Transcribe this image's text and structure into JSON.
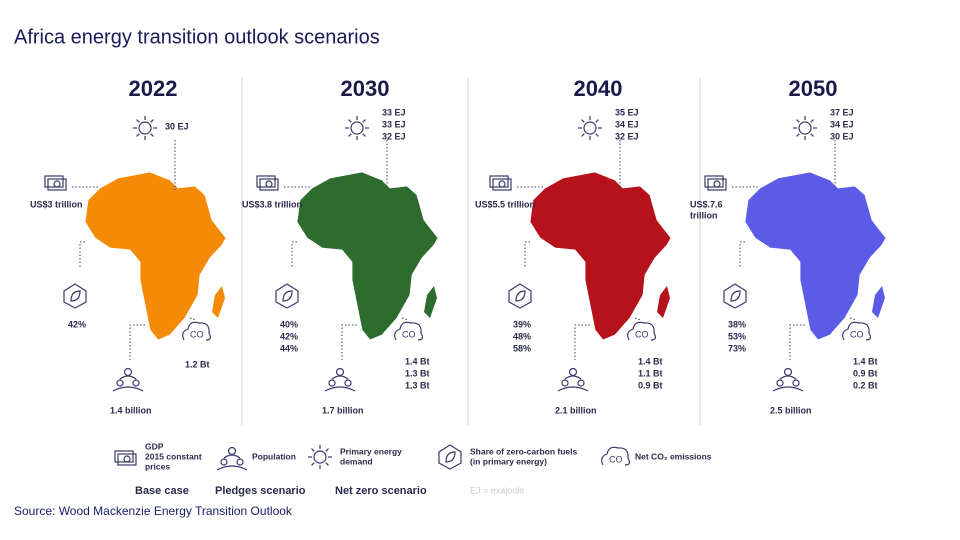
{
  "title": "Africa energy transition outlook scenarios",
  "panels": [
    {
      "year": "2022",
      "color": "#f58a07",
      "energy": [
        "30 EJ"
      ],
      "gdp": [
        "US$3 trillion"
      ],
      "zero_carbon": [
        "42%"
      ],
      "emissions": [
        "1.2 Bt"
      ],
      "population": "1.4 billion"
    },
    {
      "year": "2030",
      "color": "#2e6b2f",
      "energy": [
        "33 EJ",
        "33 EJ",
        "32 EJ"
      ],
      "gdp": [
        "US$3.8 trillion"
      ],
      "zero_carbon": [
        "40%",
        "42%",
        "44%"
      ],
      "emissions": [
        "1.4 Bt",
        "1.3 Bt",
        "1.3 Bt"
      ],
      "population": "1.7 billion"
    },
    {
      "year": "2040",
      "color": "#b5121b",
      "energy": [
        "35 EJ",
        "34 EJ",
        "32 EJ"
      ],
      "gdp": [
        "US$5.5 trillion"
      ],
      "zero_carbon": [
        "39%",
        "48%",
        "58%"
      ],
      "emissions": [
        "1.4 Bt",
        "1.1 Bt",
        "0.9 Bt"
      ],
      "population": "2.1 billion"
    },
    {
      "year": "2050",
      "color": "#5b5be8",
      "energy": [
        "37 EJ",
        "34 EJ",
        "30 EJ"
      ],
      "gdp": [
        "US$.7.6",
        "trillion"
      ],
      "zero_carbon": [
        "38%",
        "53%",
        "73%"
      ],
      "emissions": [
        "1.4 Bt",
        "0.9 Bt",
        "0.2 Bt"
      ],
      "population": "2.5 billion"
    }
  ],
  "legend": [
    {
      "key": "gdp",
      "lines": [
        "GDP",
        "2015 constant",
        "prices"
      ]
    },
    {
      "key": "population",
      "lines": [
        "Population"
      ]
    },
    {
      "key": "energy",
      "lines": [
        "Primary energy",
        "demand"
      ]
    },
    {
      "key": "zero_carbon",
      "lines": [
        "Share of zero-carbon fuels",
        "(in primary energy)"
      ]
    },
    {
      "key": "emissions",
      "lines": [
        "Net CO₂ emissions"
      ]
    }
  ],
  "scenarios": [
    {
      "name": "Base case",
      "color": "#5a1f45"
    },
    {
      "name": "Pledges scenario",
      "color": "#e8475a"
    },
    {
      "name": "Net zero scenario",
      "color": "#16948a"
    }
  ],
  "note": "EJ = exajoule",
  "source": "Source: Wood Mackenzie Energy Transition Outlook"
}
